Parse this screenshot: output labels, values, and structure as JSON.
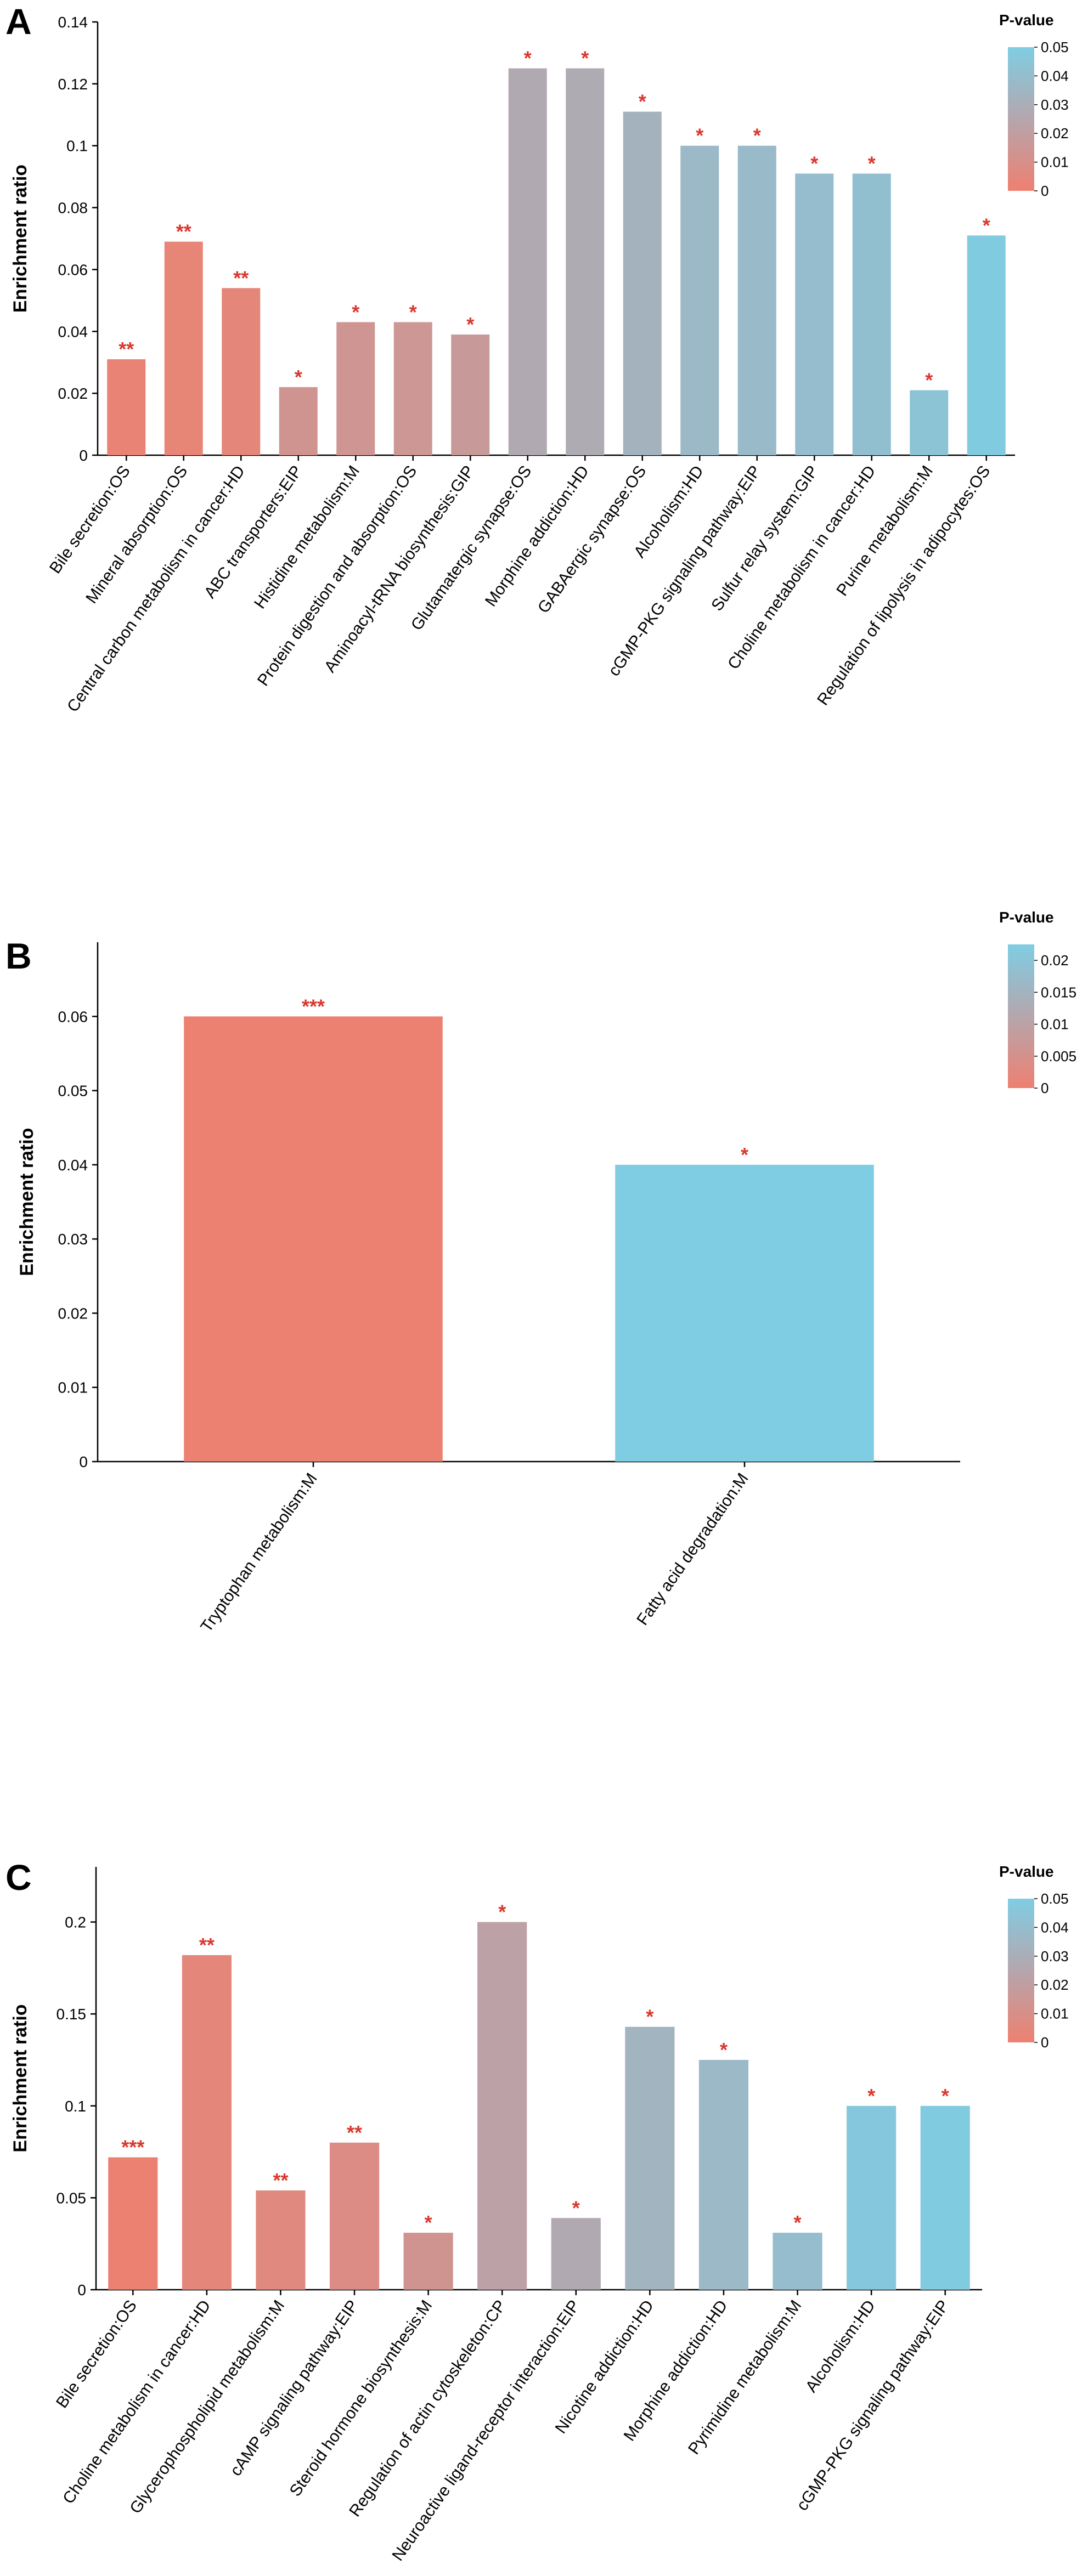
{
  "colors": {
    "low": "#ee8070",
    "high": "#7fcde3",
    "star": "#d9382f"
  },
  "chart_data": [
    {
      "type": "bar",
      "panel": "A",
      "ylabel": "Enrichment ratio",
      "ylim": [
        0,
        0.14
      ],
      "yticks": [
        0,
        0.02,
        0.04,
        0.06,
        0.08,
        0.1,
        0.12,
        0.14
      ],
      "legend": {
        "title": "P-value",
        "placement": "top-right",
        "range": [
          0,
          0.05
        ],
        "ticks": [
          0,
          0.01,
          0.02,
          0.03,
          0.04,
          0.05
        ]
      },
      "categories": [
        "Bile secretion:OS",
        "Mineral absorption:OS",
        "Central carbon metabolism in cancer:HD",
        "ABC transporters:EIP",
        "Histidine metabolism:M",
        "Protein digestion and absorption:OS",
        "Aminoacyl-tRNA biosynthesis:GIP",
        "Glutamatergic synapse:OS",
        "Morphine addiction:HD",
        "GABAergic synapse:OS",
        "Alcoholism:HD",
        "cGMP-PKG signaling pathway:EIP",
        "Sulfur relay system:GIP",
        "Choline metabolism in cancer:HD",
        "Purine metabolism:M",
        "Regulation of lipolysis in adipocytes:OS"
      ],
      "values": [
        0.031,
        0.069,
        0.054,
        0.022,
        0.043,
        0.043,
        0.039,
        0.125,
        0.125,
        0.111,
        0.1,
        0.1,
        0.091,
        0.091,
        0.021,
        0.071
      ],
      "pvalues": [
        0.002,
        0.003,
        0.004,
        0.013,
        0.014,
        0.015,
        0.017,
        0.027,
        0.028,
        0.033,
        0.037,
        0.038,
        0.04,
        0.041,
        0.044,
        0.049
      ],
      "significance": [
        "**",
        "**",
        "**",
        "*",
        "*",
        "*",
        "*",
        "*",
        "*",
        "*",
        "*",
        "*",
        "*",
        "*",
        "*",
        "*"
      ]
    },
    {
      "type": "bar",
      "panel": "B",
      "ylabel": "Enrichment ratio",
      "ylim": [
        0,
        0.07
      ],
      "yticks": [
        0,
        0.01,
        0.02,
        0.03,
        0.04,
        0.05,
        0.06
      ],
      "legend": {
        "title": "P-value",
        "placement": "top-right",
        "range": [
          0,
          0.0225
        ],
        "ticks": [
          0,
          0.005,
          0.01,
          0.015,
          0.02
        ]
      },
      "categories": [
        "Tryptophan metabolism:M",
        "Fatty acid degradation:M"
      ],
      "values": [
        0.06,
        0.04
      ],
      "pvalues": [
        0.0003,
        0.0225
      ],
      "significance": [
        "***",
        "*"
      ]
    },
    {
      "type": "bar",
      "panel": "C",
      "ylabel": "Enrichment ratio",
      "ylim": [
        0,
        0.23
      ],
      "yticks": [
        0,
        0.05,
        0.1,
        0.15,
        0.2
      ],
      "legend": {
        "title": "P-value",
        "placement": "top-right",
        "range": [
          0,
          0.05
        ],
        "ticks": [
          0,
          0.01,
          0.02,
          0.03,
          0.04,
          0.05
        ]
      },
      "categories": [
        "Bile secretion:OS",
        "Choline metabolism in cancer:HD",
        "Glycerophospholipid metabolism:M",
        "cAMP signaling pathway:EIP",
        "Steroid hormone biosynthesis:M",
        "Regulation of actin cytoskeleton:CP",
        "Neuroactive ligand-receptor interaction:EIP",
        "Nicotine addiction:HD",
        "Morphine addiction:HD",
        "Pyrimidine metabolism:M",
        "Alcoholism:HD",
        "cGMP-PKG signaling pathway:EIP"
      ],
      "values": [
        0.072,
        0.182,
        0.054,
        0.08,
        0.031,
        0.2,
        0.039,
        0.143,
        0.125,
        0.031,
        0.1,
        0.1
      ],
      "pvalues": [
        0.0005,
        0.004,
        0.006,
        0.008,
        0.013,
        0.022,
        0.027,
        0.034,
        0.037,
        0.04,
        0.047,
        0.049
      ],
      "significance": [
        "***",
        "**",
        "**",
        "**",
        "*",
        "*",
        "*",
        "*",
        "*",
        "*",
        "*",
        "*"
      ]
    }
  ]
}
